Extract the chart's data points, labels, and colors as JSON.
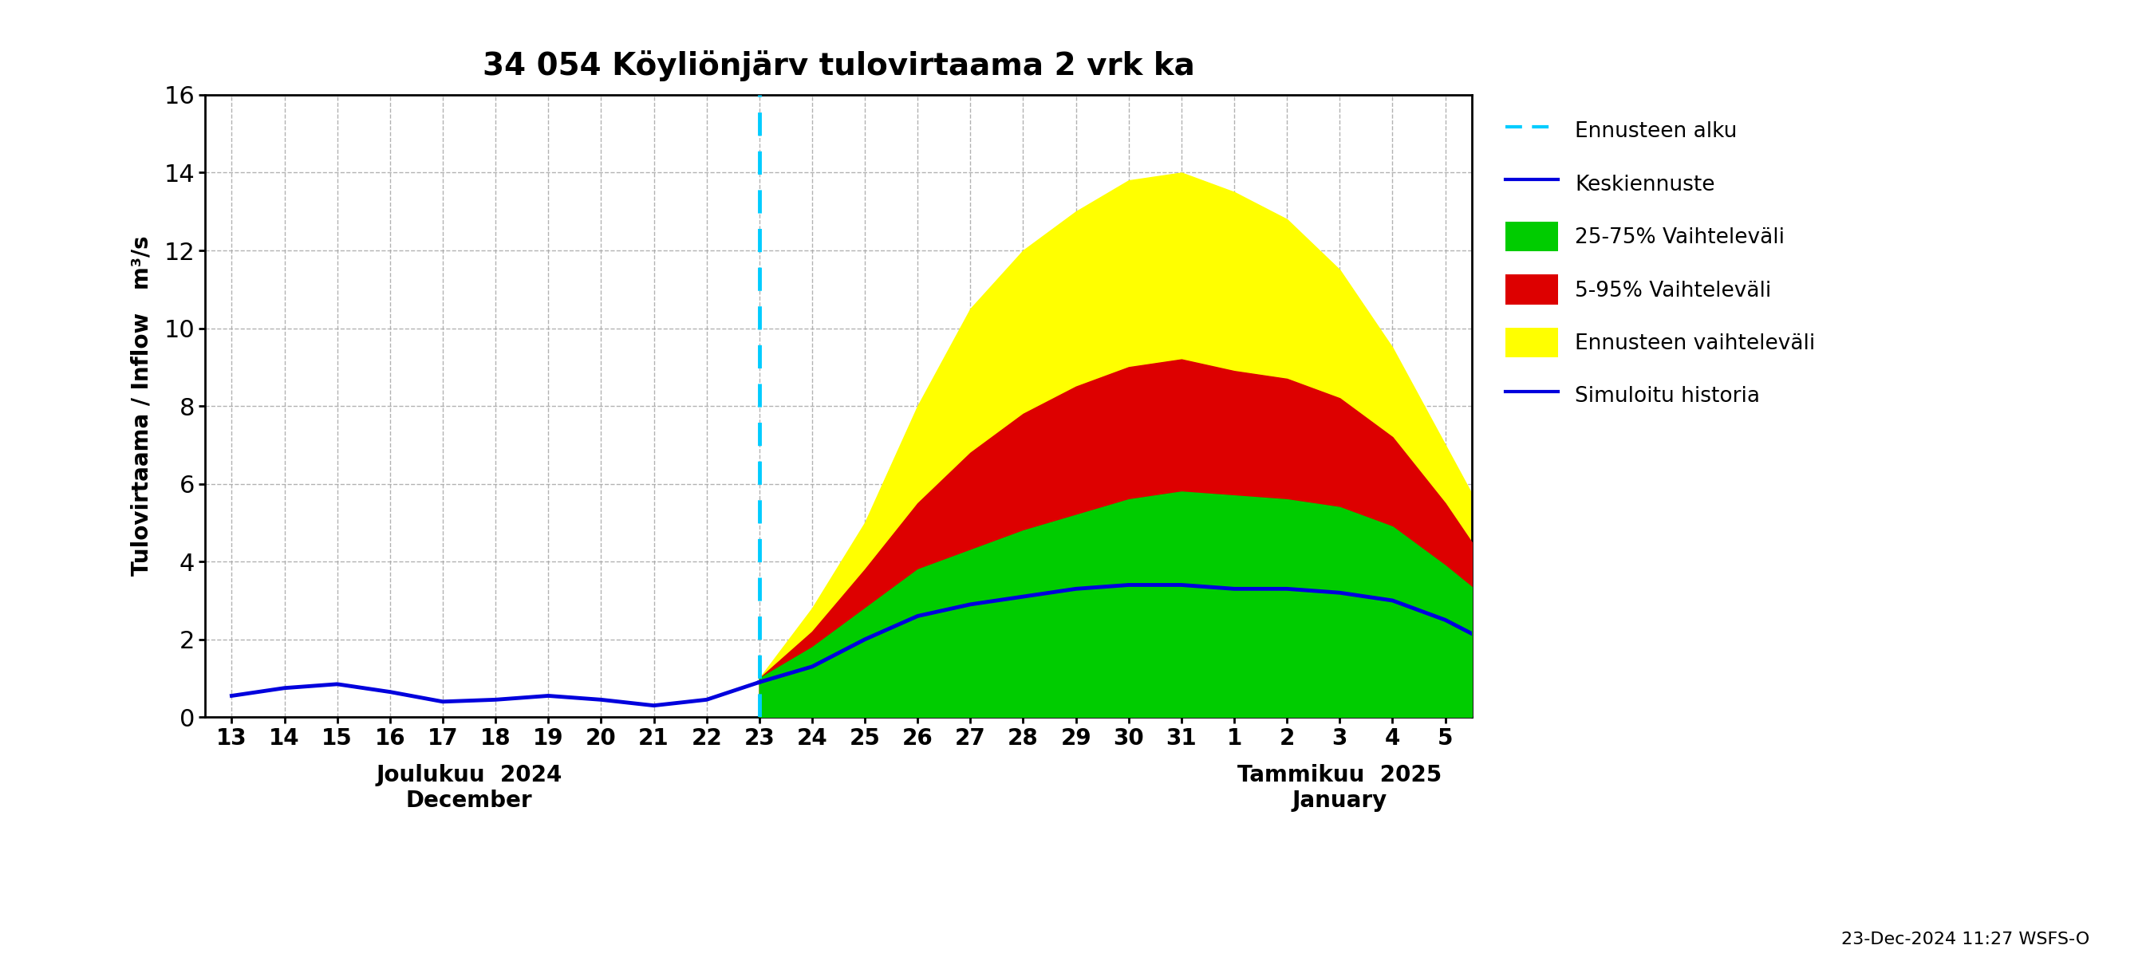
{
  "title": "34 054 Köyliönjärv tulovirtaama 2 vrk ka",
  "ylabel": "Tulovirtaama / Inflow   m³/s",
  "ylim": [
    0,
    16
  ],
  "yticks": [
    0,
    2,
    4,
    6,
    8,
    10,
    12,
    14,
    16
  ],
  "footnote": "23-Dec-2024 11:27 WSFS-O",
  "x_labels_dec": [
    "13",
    "14",
    "15",
    "16",
    "17",
    "18",
    "19",
    "20",
    "21",
    "22",
    "23",
    "24",
    "25",
    "26",
    "27",
    "28",
    "29",
    "30",
    "31"
  ],
  "x_labels_jan": [
    "1",
    "2",
    "3",
    "4",
    "5"
  ],
  "month_label_dec": "Joulukuu  2024\nDecember",
  "month_label_jan": "Tammikuu  2025\nJanuary",
  "history_flow": [
    0.55,
    0.75,
    0.85,
    0.65,
    0.4,
    0.45,
    0.55,
    0.45,
    0.3,
    0.45,
    0.9
  ],
  "median": [
    0.9,
    1.3,
    2.0,
    2.6,
    2.9,
    3.1,
    3.3,
    3.4,
    3.4,
    3.3,
    3.3,
    3.2,
    3.0,
    2.5,
    1.8
  ],
  "p75_top": [
    1.0,
    1.8,
    2.8,
    3.8,
    4.3,
    4.8,
    5.2,
    5.6,
    5.8,
    5.7,
    5.6,
    5.4,
    4.9,
    3.9,
    2.8
  ],
  "red_top": [
    1.0,
    2.2,
    3.8,
    5.5,
    6.8,
    7.8,
    8.5,
    9.0,
    9.2,
    8.9,
    8.7,
    8.2,
    7.2,
    5.5,
    3.5
  ],
  "p95_top": [
    1.0,
    2.8,
    5.0,
    8.0,
    10.5,
    12.0,
    13.0,
    13.8,
    14.0,
    13.5,
    12.8,
    11.5,
    9.5,
    7.0,
    4.5
  ],
  "colors": {
    "history": "#0000dd",
    "median": "#0000dd",
    "green_band": "#00cc00",
    "yellow_band": "#ffff00",
    "red_band": "#dd0000",
    "cyan_line": "#00ccff",
    "background": "#ffffff"
  },
  "legend_labels": [
    "Ennusteen alku",
    "Keskiennuste",
    "25-75% Vaihteleväli",
    "5-95% Vaihteleväli",
    "Ennusteen vaihteleväli",
    "Simuloitu historia"
  ]
}
